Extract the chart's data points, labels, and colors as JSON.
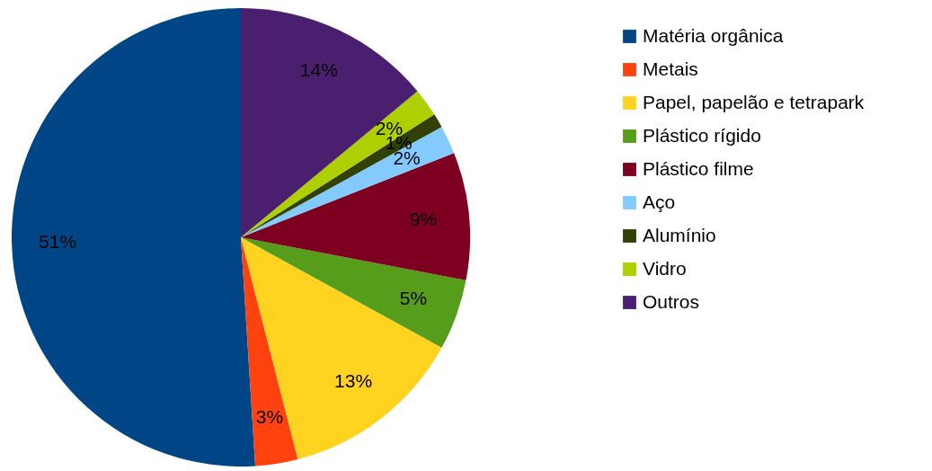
{
  "chart_data": {
    "type": "pie",
    "categories": [
      "Matéria orgânica",
      "Metais",
      "Papel, papelão e tetrapark",
      "Plástico rígido",
      "Plástico filme",
      "Aço",
      "Alumínio",
      "Vidro",
      "Outros"
    ],
    "values": [
      51,
      3,
      13,
      5,
      9,
      2,
      1,
      2,
      14
    ],
    "value_labels": [
      "51%",
      "3%",
      "13%",
      "5%",
      "9%",
      "2%",
      "1%",
      "2%",
      "14%"
    ],
    "colors": [
      "#004586",
      "#ff420e",
      "#ffd320",
      "#579d1c",
      "#7e0021",
      "#83caff",
      "#314004",
      "#aecf00",
      "#4b1f6f"
    ],
    "legend": "right"
  }
}
